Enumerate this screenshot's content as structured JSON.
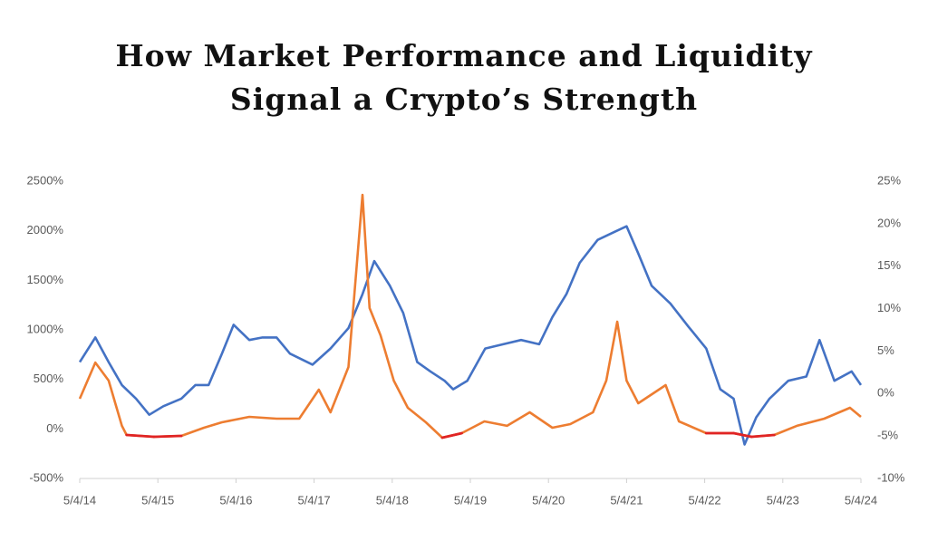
{
  "chart_data": {
    "type": "line",
    "title": [
      "How Market Performance and Liquidity",
      "Signal a Crypto’s Strength"
    ],
    "xlim": [
      2014.34,
      2024.34
    ],
    "xticks": [
      {
        "value": 2014.34,
        "label": "5/4/14"
      },
      {
        "value": 2015.34,
        "label": "5/4/15"
      },
      {
        "value": 2016.34,
        "label": "5/4/16"
      },
      {
        "value": 2017.34,
        "label": "5/4/17"
      },
      {
        "value": 2018.34,
        "label": "5/4/18"
      },
      {
        "value": 2019.34,
        "label": "5/4/19"
      },
      {
        "value": 2020.34,
        "label": "5/4/20"
      },
      {
        "value": 2021.34,
        "label": "5/4/21"
      },
      {
        "value": 2022.34,
        "label": "5/4/22"
      },
      {
        "value": 2023.34,
        "label": "5/4/23"
      },
      {
        "value": 2024.34,
        "label": "5/4/24"
      }
    ],
    "ylim": [
      -500,
      2500
    ],
    "yticks": [
      {
        "value": -500,
        "label": "-500%"
      },
      {
        "value": 0,
        "label": "0%"
      },
      {
        "value": 500,
        "label": "500%"
      },
      {
        "value": 1000,
        "label": "1000%"
      },
      {
        "value": 1500,
        "label": "1500%"
      },
      {
        "value": 2000,
        "label": "2000%"
      },
      {
        "value": 2500,
        "label": "2500%"
      }
    ],
    "y2lim": [
      -10,
      25
    ],
    "y2ticks": [
      {
        "value": -10,
        "label": "-10%"
      },
      {
        "value": -5,
        "label": "-5%"
      },
      {
        "value": 0,
        "label": "0%"
      },
      {
        "value": 5,
        "label": "5%"
      },
      {
        "value": 10,
        "label": "10%"
      },
      {
        "value": 15,
        "label": "15%"
      },
      {
        "value": 20,
        "label": "20%"
      },
      {
        "value": 25,
        "label": "25%"
      }
    ],
    "grid": false,
    "negative_color": "#e02424",
    "series": [
      {
        "color": "#4472c4",
        "axis": "y2",
        "x": [
          2014.34,
          2014.54,
          2014.71,
          2014.88,
          2015.06,
          2015.23,
          2015.41,
          2015.64,
          2015.82,
          2015.99,
          2016.16,
          2016.31,
          2016.51,
          2016.68,
          2016.86,
          2017.03,
          2017.32,
          2017.55,
          2017.78,
          2017.96,
          2018.11,
          2018.31,
          2018.48,
          2018.66,
          2018.83,
          2019.01,
          2019.12,
          2019.3,
          2019.53,
          2019.76,
          2019.99,
          2020.22,
          2020.39,
          2020.57,
          2020.74,
          2020.97,
          2021.2,
          2021.34,
          2021.49,
          2021.66,
          2021.9,
          2022.13,
          2022.36,
          2022.54,
          2022.71,
          2022.85,
          2023.0,
          2023.17,
          2023.41,
          2023.64,
          2023.81,
          2024.0,
          2024.22,
          2024.34
        ],
        "values": [
          3.7,
          6.6,
          3.7,
          1.0,
          -0.6,
          -2.5,
          -1.5,
          -0.6,
          1.0,
          1.0,
          4.7,
          8.1,
          6.3,
          6.6,
          6.6,
          4.7,
          3.4,
          5.3,
          7.7,
          11.7,
          15.6,
          12.7,
          9.5,
          3.7,
          2.6,
          1.5,
          0.5,
          1.5,
          5.3,
          5.8,
          6.3,
          5.8,
          9.0,
          11.7,
          15.4,
          18.1,
          19.1,
          19.7,
          16.5,
          12.7,
          10.6,
          7.9,
          5.3,
          0.5,
          -0.6,
          -6.0,
          -2.8,
          -0.6,
          1.5,
          2.0,
          6.3,
          1.5,
          2.6,
          1.0
        ]
      },
      {
        "color": "#ed7d31",
        "axis": "y",
        "x": [
          2014.34,
          2014.54,
          2014.71,
          2014.88,
          2014.94,
          2015.29,
          2015.64,
          2015.93,
          2016.16,
          2016.51,
          2016.86,
          2017.15,
          2017.4,
          2017.55,
          2017.78,
          2017.96,
          2018.05,
          2018.19,
          2018.36,
          2018.54,
          2018.77,
          2018.98,
          2019.23,
          2019.52,
          2019.81,
          2020.1,
          2020.39,
          2020.62,
          2020.91,
          2021.08,
          2021.22,
          2021.34,
          2021.49,
          2021.84,
          2022.01,
          2022.36,
          2022.71,
          2022.94,
          2023.23,
          2023.52,
          2023.87,
          2024.2,
          2024.34
        ],
        "values": [
          305,
          670,
          488,
          31,
          -61,
          -79,
          -70,
          12,
          67,
          122,
          104,
          104,
          396,
          168,
          625,
          2363,
          1220,
          945,
          488,
          213,
          67,
          -88,
          -43,
          76,
          31,
          168,
          12,
          49,
          168,
          488,
          1082,
          488,
          259,
          442,
          76,
          -43,
          -43,
          -79,
          -61,
          31,
          104,
          213,
          122
        ]
      }
    ]
  }
}
